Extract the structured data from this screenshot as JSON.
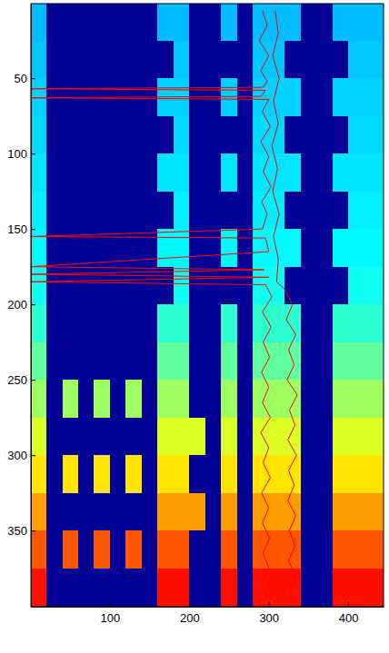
{
  "chart_data": {
    "type": "heatmap",
    "xlim": [
      0.5,
      444.5
    ],
    "ylim": [
      400.5,
      0.5
    ],
    "xticks": [
      100,
      200,
      300,
      400
    ],
    "yticks": [
      50,
      100,
      150,
      200,
      250,
      300,
      350
    ],
    "clim": [
      0,
      1
    ],
    "x_edges": [
      0.5,
      20,
      40,
      60,
      80,
      100,
      120,
      140,
      160,
      180,
      200,
      220,
      240,
      260,
      280,
      300,
      320,
      340,
      360,
      380,
      400,
      420,
      440,
      444.5
    ],
    "y_edges": [
      0.5,
      25,
      50,
      75,
      100,
      125,
      150,
      175,
      200,
      225,
      250,
      275,
      300,
      325,
      350,
      375,
      400.5
    ],
    "cells": [
      [
        0.31,
        0.02,
        0.02,
        0.02,
        0.02,
        0.02,
        0.02,
        0.02,
        0.31,
        0.31,
        0.02,
        0.02,
        0.31,
        0.02,
        0.31,
        0.31,
        0.31,
        0.02,
        0.02,
        0.31,
        0.31,
        0.31,
        0.31
      ],
      [
        0.32,
        0.02,
        0.02,
        0.02,
        0.02,
        0.02,
        0.02,
        0.02,
        0.02,
        0.32,
        0.02,
        0.02,
        0.02,
        0.02,
        0.32,
        0.32,
        0.02,
        0.02,
        0.02,
        0.02,
        0.32,
        0.32,
        0.32
      ],
      [
        0.33,
        0.02,
        0.02,
        0.02,
        0.02,
        0.02,
        0.02,
        0.02,
        0.33,
        0.33,
        0.02,
        0.02,
        0.33,
        0.02,
        0.33,
        0.33,
        0.33,
        0.02,
        0.02,
        0.33,
        0.33,
        0.33,
        0.33
      ],
      [
        0.34,
        0.02,
        0.02,
        0.02,
        0.02,
        0.02,
        0.02,
        0.02,
        0.02,
        0.34,
        0.02,
        0.02,
        0.02,
        0.02,
        0.34,
        0.34,
        0.02,
        0.02,
        0.02,
        0.02,
        0.34,
        0.34,
        0.34
      ],
      [
        0.35,
        0.02,
        0.02,
        0.02,
        0.02,
        0.02,
        0.02,
        0.02,
        0.35,
        0.35,
        0.02,
        0.02,
        0.35,
        0.02,
        0.35,
        0.35,
        0.35,
        0.02,
        0.02,
        0.35,
        0.35,
        0.35,
        0.35
      ],
      [
        0.36,
        0.02,
        0.02,
        0.02,
        0.02,
        0.02,
        0.02,
        0.02,
        0.02,
        0.36,
        0.02,
        0.02,
        0.02,
        0.02,
        0.36,
        0.36,
        0.02,
        0.02,
        0.02,
        0.02,
        0.36,
        0.36,
        0.36
      ],
      [
        0.37,
        0.02,
        0.02,
        0.02,
        0.02,
        0.02,
        0.02,
        0.02,
        0.37,
        0.37,
        0.02,
        0.02,
        0.37,
        0.02,
        0.37,
        0.37,
        0.37,
        0.02,
        0.02,
        0.37,
        0.37,
        0.37,
        0.37
      ],
      [
        0.39,
        0.02,
        0.02,
        0.02,
        0.02,
        0.02,
        0.02,
        0.02,
        0.02,
        0.39,
        0.02,
        0.02,
        0.02,
        0.02,
        0.39,
        0.39,
        0.02,
        0.02,
        0.02,
        0.02,
        0.39,
        0.39,
        0.39
      ],
      [
        0.42,
        0.02,
        0.02,
        0.02,
        0.02,
        0.02,
        0.02,
        0.02,
        0.42,
        0.42,
        0.02,
        0.02,
        0.42,
        0.02,
        0.42,
        0.42,
        0.42,
        0.02,
        0.02,
        0.42,
        0.42,
        0.42,
        0.42
      ],
      [
        0.47,
        0.02,
        0.02,
        0.02,
        0.02,
        0.02,
        0.02,
        0.02,
        0.47,
        0.47,
        0.02,
        0.02,
        0.47,
        0.02,
        0.47,
        0.47,
        0.47,
        0.02,
        0.02,
        0.47,
        0.47,
        0.47,
        0.47
      ],
      [
        0.53,
        0.02,
        0.53,
        0.02,
        0.53,
        0.02,
        0.53,
        0.02,
        0.53,
        0.53,
        0.02,
        0.02,
        0.53,
        0.02,
        0.53,
        0.53,
        0.53,
        0.02,
        0.02,
        0.53,
        0.53,
        0.53,
        0.53
      ],
      [
        0.59,
        0.02,
        0.02,
        0.02,
        0.02,
        0.02,
        0.02,
        0.02,
        0.59,
        0.59,
        0.59,
        0.02,
        0.59,
        0.02,
        0.59,
        0.59,
        0.59,
        0.02,
        0.02,
        0.59,
        0.59,
        0.59,
        0.59
      ],
      [
        0.65,
        0.02,
        0.65,
        0.02,
        0.65,
        0.02,
        0.65,
        0.02,
        0.65,
        0.65,
        0.02,
        0.02,
        0.65,
        0.02,
        0.65,
        0.65,
        0.65,
        0.02,
        0.02,
        0.65,
        0.65,
        0.65,
        0.65
      ],
      [
        0.72,
        0.02,
        0.02,
        0.02,
        0.02,
        0.02,
        0.02,
        0.02,
        0.72,
        0.72,
        0.72,
        0.02,
        0.72,
        0.02,
        0.72,
        0.72,
        0.72,
        0.02,
        0.02,
        0.72,
        0.72,
        0.72,
        0.72
      ],
      [
        0.79,
        0.02,
        0.79,
        0.02,
        0.79,
        0.02,
        0.79,
        0.02,
        0.79,
        0.79,
        0.02,
        0.02,
        0.79,
        0.02,
        0.79,
        0.79,
        0.79,
        0.02,
        0.02,
        0.79,
        0.79,
        0.79,
        0.79
      ],
      [
        0.86,
        0.02,
        0.02,
        0.02,
        0.02,
        0.02,
        0.02,
        0.02,
        0.86,
        0.86,
        0.02,
        0.02,
        0.86,
        0.02,
        0.86,
        0.86,
        0.86,
        0.02,
        0.02,
        0.86,
        0.86,
        0.86,
        0.86
      ]
    ],
    "series": [
      {
        "type": "line",
        "color": "#ff0000",
        "x": [
          292,
          298,
          288,
          300,
          290,
          298,
          293,
          1,
          296,
          290,
          1,
          300,
          292,
          302,
          290,
          300,
          293,
          303,
          291,
          298,
          292,
          1,
          296,
          300,
          1,
          294,
          1,
          300,
          1,
          296,
          304,
          292,
          303,
          293,
          301,
          291,
          300,
          292,
          302,
          290,
          300,
          293,
          302,
          291,
          300,
          292,
          301,
          293,
          300,
          291,
          298
        ],
        "y": [
          5,
          15,
          25,
          35,
          45,
          52,
          56,
          57,
          58,
          62,
          63,
          64,
          72,
          82,
          92,
          102,
          112,
          122,
          132,
          140,
          150,
          155,
          156,
          165,
          175,
          177,
          180,
          182,
          185,
          187,
          195,
          205,
          215,
          225,
          235,
          245,
          255,
          265,
          275,
          285,
          295,
          305,
          315,
          325,
          335,
          345,
          355,
          365,
          375,
          385,
          395
        ]
      },
      {
        "type": "line",
        "color": "#ff0000",
        "x": [
          308,
          312,
          305,
          313,
          306,
          312,
          304,
          311,
          305,
          313,
          306,
          312,
          310,
          320,
          330,
          322,
          334,
          325,
          332,
          323,
          336,
          326,
          333,
          324,
          335,
          325,
          332,
          324,
          334,
          326,
          333,
          325,
          334,
          327,
          332
        ],
        "y": [
          5,
          20,
          35,
          50,
          65,
          80,
          95,
          110,
          125,
          140,
          155,
          170,
          185,
          190,
          200,
          210,
          220,
          230,
          240,
          250,
          260,
          270,
          280,
          290,
          300,
          310,
          320,
          330,
          340,
          350,
          360,
          370,
          380,
          390,
          398
        ]
      }
    ]
  }
}
